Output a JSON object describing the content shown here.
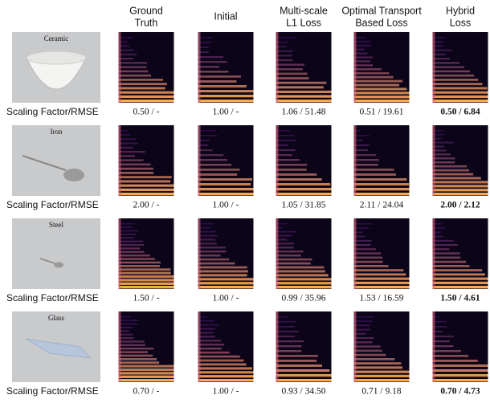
{
  "columns": [
    [
      "Ground",
      "Truth"
    ],
    [
      "Initial"
    ],
    [
      "Multi-scale",
      "L1 Loss"
    ],
    [
      "Optimal Transport",
      "Based Loss"
    ],
    [
      "Hybrid",
      "Loss"
    ]
  ],
  "rows": [
    {
      "material": "Ceramic",
      "label": "Scaling Factor/RMSE",
      "values": [
        "0.50 / -",
        "1.00 / -",
        "1.06 / 51.48",
        "0.51 / 19.61",
        "0.50 / 6.84"
      ]
    },
    {
      "material": "Iron",
      "label": "Scaling Factor/RMSE",
      "values": [
        "2.00 / -",
        "1.00 / -",
        "1.05 / 31.85",
        "2.11 / 24.04",
        "2.00 / 2.12"
      ]
    },
    {
      "material": "Steel",
      "label": "Scaling Factor/RMSE",
      "values": [
        "1.50 / -",
        "1.00 / -",
        "0.99 / 35.96",
        "1.53 / 16.59",
        "1.50 / 4.61"
      ]
    },
    {
      "material": "Glass",
      "label": "Scaling Factor/RMSE",
      "values": [
        "0.70 / -",
        "1.00 / -",
        "0.93 / 34.50",
        "0.71 / 9.18",
        "0.70 / 4.73"
      ]
    }
  ]
}
